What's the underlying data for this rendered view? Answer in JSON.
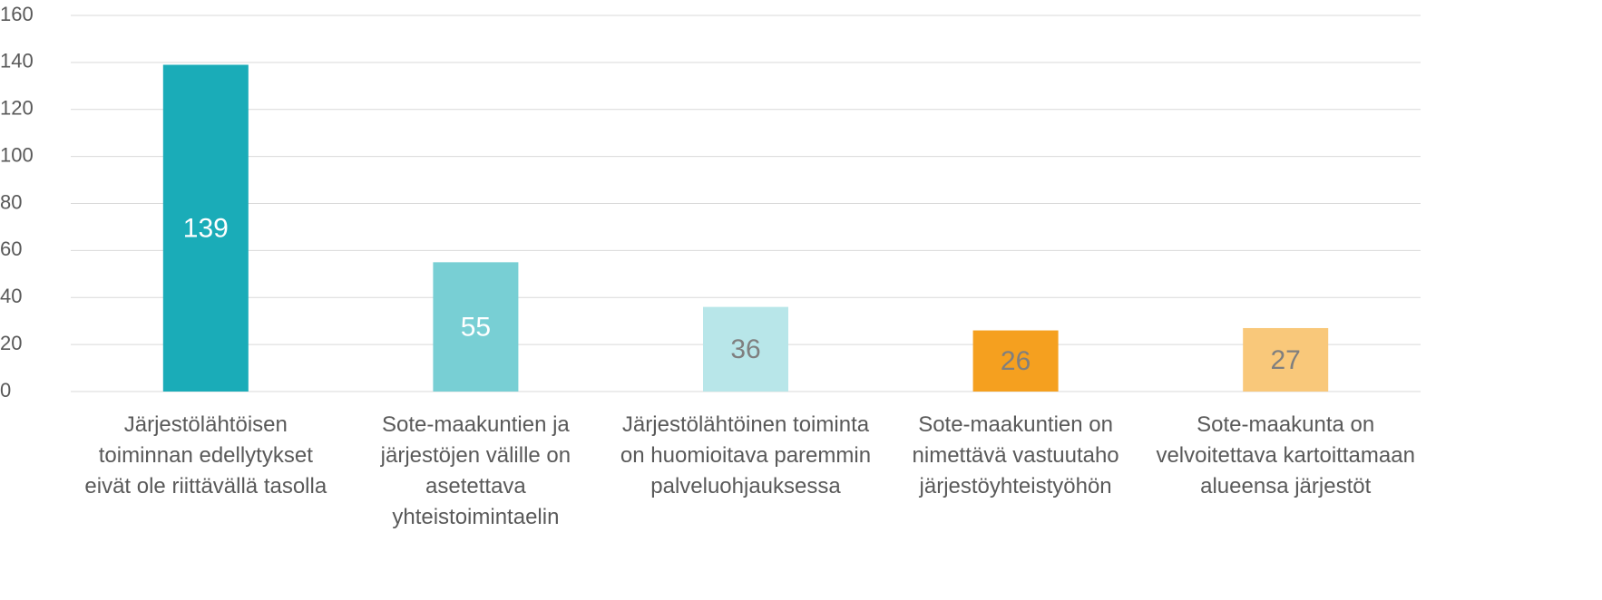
{
  "chart_data": {
    "type": "bar",
    "categories": [
      "Järjestölähtöisen toiminnan edellytykset eivät ole riittävällä tasolla",
      "Sote-maakuntien ja järjestöjen välille on asetettava yhteistoimintaelin",
      "Järjestölähtöinen toiminta on huomioitava paremmin palveluohjauksessa",
      "Sote-maakuntien on nimettävä vastuutaho järjestöyhteistyöhön",
      "Sote-maakunta on velvoitettava kartoittamaan alueensa järjestöt"
    ],
    "values": [
      139,
      55,
      36,
      26,
      27
    ],
    "colors": [
      "#1aacb8",
      "#78cfd4",
      "#b8e6e9",
      "#f5a01f",
      "#f9c87a"
    ],
    "label_colors": [
      "#ffffff",
      "#ffffff",
      "#7f7f7f",
      "#7f7f7f",
      "#7f7f7f"
    ],
    "ylim": [
      0,
      160
    ],
    "yticks": [
      0,
      20,
      40,
      60,
      80,
      100,
      120,
      140,
      160
    ],
    "grid": true
  }
}
